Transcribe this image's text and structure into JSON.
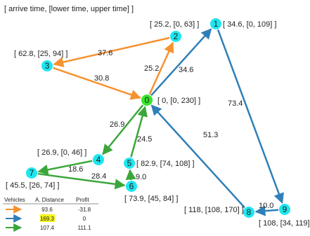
{
  "header": {
    "note": "[ arrive time, [lower time, upper time] ]"
  },
  "colors": {
    "node": "#1ee6f0",
    "depot": "#35e62a",
    "route_orange": "#f5922f",
    "route_blue": "#2f7fb8",
    "route_green": "#3aa63a",
    "highlight": "#f5f51a"
  },
  "nodes": [
    {
      "id": "0",
      "role": "depot",
      "info": "[ 0, [0, 230] ]"
    },
    {
      "id": "1",
      "role": "customer",
      "info": "[ 34.6, [0, 109] ]"
    },
    {
      "id": "2",
      "role": "customer",
      "info": "[ 25.2, [0, 63] ]"
    },
    {
      "id": "3",
      "role": "customer",
      "info": "[ 62.8, [25, 94] ]"
    },
    {
      "id": "4",
      "role": "customer",
      "info": "[ 26.9, [0, 46] ]"
    },
    {
      "id": "5",
      "role": "customer",
      "info": "[ 82.9,  [74, 108] ]"
    },
    {
      "id": "6",
      "role": "customer",
      "info": "[ 73.9, [45, 84] ]"
    },
    {
      "id": "7",
      "role": "customer",
      "info": "[ 45.5, [26, 74] ]"
    },
    {
      "id": "8",
      "role": "customer",
      "info": "[ 118, [108, 170] ]"
    },
    {
      "id": "9",
      "role": "customer",
      "info": "[ 108, [34, 119]"
    }
  ],
  "edges": [
    {
      "from": "0",
      "to": "2",
      "route": "orange",
      "distance": "25.2"
    },
    {
      "from": "2",
      "to": "3",
      "route": "orange",
      "distance": "37.6"
    },
    {
      "from": "3",
      "to": "0",
      "route": "orange",
      "distance": "30.8"
    },
    {
      "from": "0",
      "to": "1",
      "route": "blue",
      "distance": "34.6"
    },
    {
      "from": "1",
      "to": "9",
      "route": "blue",
      "distance": "73.4"
    },
    {
      "from": "9",
      "to": "8",
      "route": "blue",
      "distance": "10.0"
    },
    {
      "from": "8",
      "to": "0",
      "route": "blue",
      "distance": "51.3"
    },
    {
      "from": "0",
      "to": "4",
      "route": "green",
      "distance": "26.9"
    },
    {
      "from": "4",
      "to": "7",
      "route": "green",
      "distance": "18.6"
    },
    {
      "from": "7",
      "to": "6",
      "route": "green",
      "distance": "28.4"
    },
    {
      "from": "6",
      "to": "5",
      "route": "green",
      "distance": "9.0"
    },
    {
      "from": "5",
      "to": "0",
      "route": "green",
      "distance": "24.5"
    }
  ],
  "legend": {
    "headers": [
      "Vehicles",
      "A. Distance",
      "Profit"
    ],
    "rows": [
      {
        "route": "orange",
        "distance": "93.6",
        "profit": "-31.8",
        "highlight": false
      },
      {
        "route": "blue",
        "distance": "169.3",
        "profit": "0",
        "highlight": true
      },
      {
        "route": "green",
        "distance": "107.4",
        "profit": "111.1",
        "highlight": false
      }
    ]
  }
}
